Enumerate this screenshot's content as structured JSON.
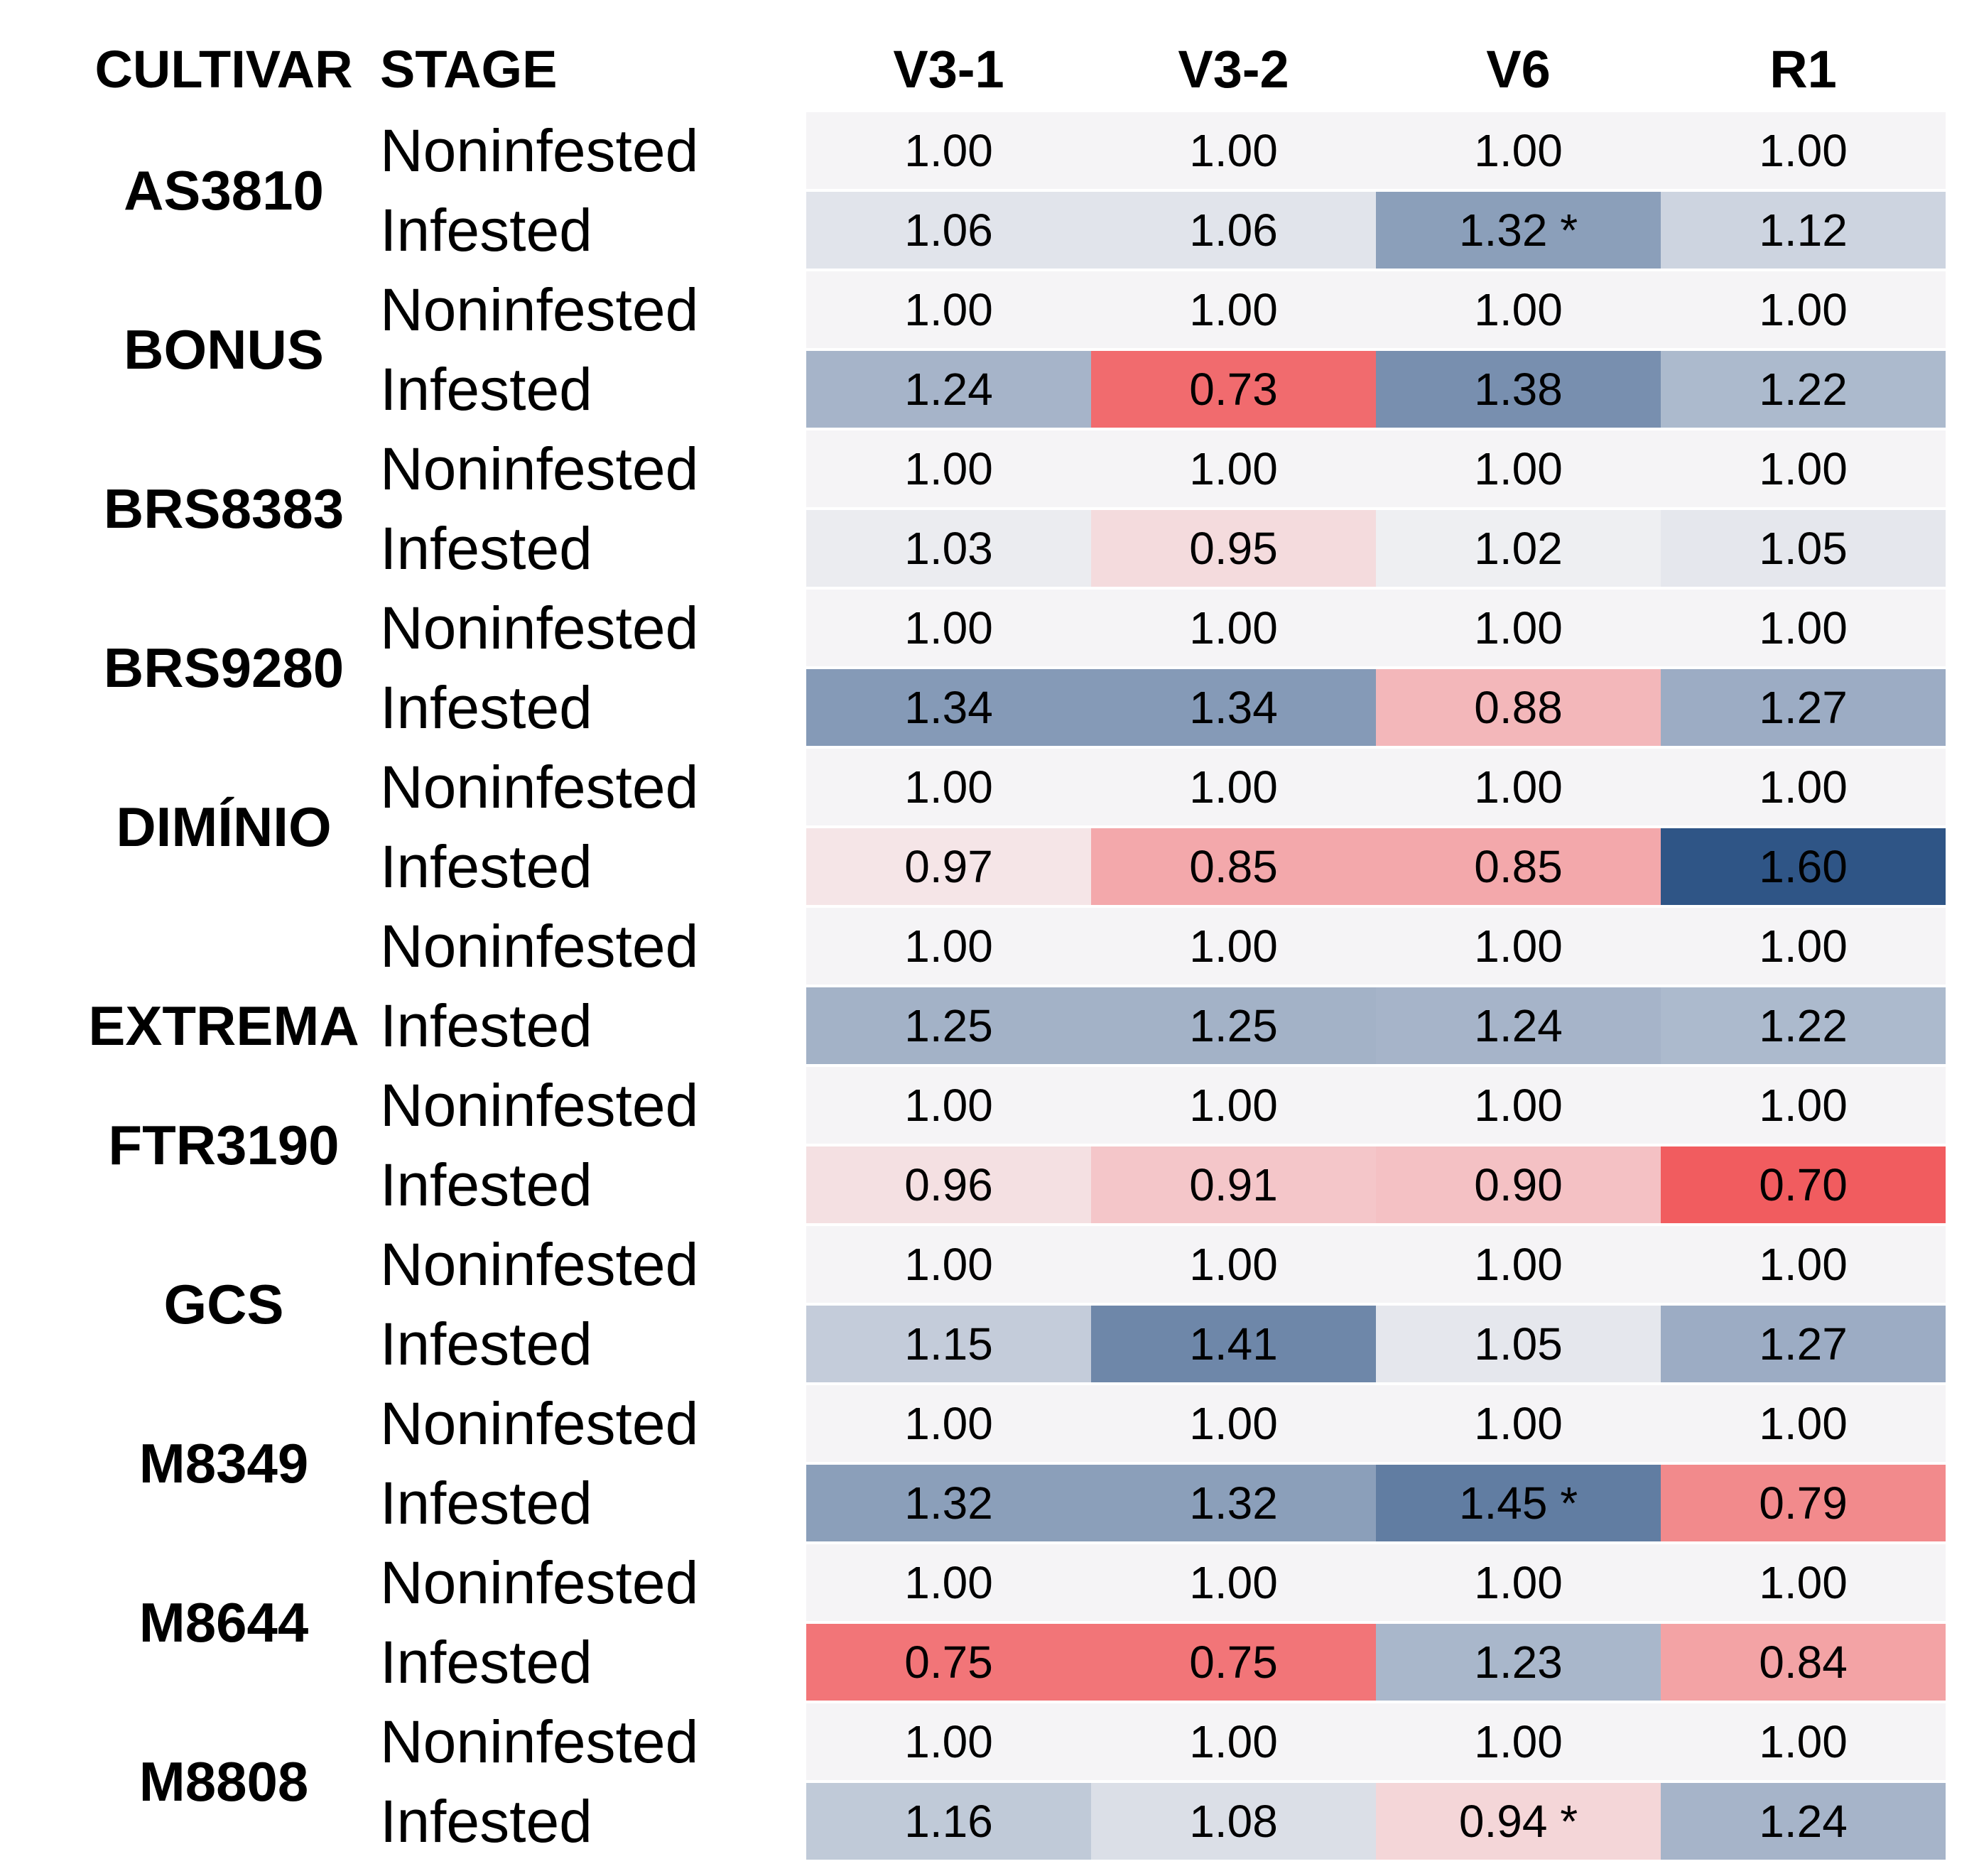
{
  "chart_data": {
    "type": "heatmap",
    "column_headers": [
      "CULTIVAR",
      "STAGE",
      "V3-1",
      "V3-2",
      "V6",
      "R1"
    ],
    "value_columns": [
      "V3-1",
      "V3-2",
      "V6",
      "R1"
    ],
    "significance_marker": "*",
    "color_scale": {
      "type": "diverging",
      "low_color": "#f15c5f",
      "mid_color": "#f5f4f6",
      "high_color": "#2f5586",
      "low_value": 0.7,
      "mid_value": 1.0,
      "high_value": 1.6
    },
    "groups": [
      {
        "cultivar": "AS3810",
        "rows": [
          {
            "stage": "Noninfested",
            "labels": [
              "1.00",
              "1.00",
              "1.00",
              "1.00"
            ],
            "values": [
              1.0,
              1.0,
              1.0,
              1.0
            ]
          },
          {
            "stage": "Infested",
            "labels": [
              "1.06",
              "1.06",
              "1.32 *",
              "1.12"
            ],
            "values": [
              1.06,
              1.06,
              1.32,
              1.12
            ]
          }
        ]
      },
      {
        "cultivar": "BONUS",
        "rows": [
          {
            "stage": "Noninfested",
            "labels": [
              "1.00",
              "1.00",
              "1.00",
              "1.00"
            ],
            "values": [
              1.0,
              1.0,
              1.0,
              1.0
            ]
          },
          {
            "stage": "Infested",
            "labels": [
              "1.24",
              "0.73",
              "1.38",
              "1.22"
            ],
            "values": [
              1.24,
              0.73,
              1.38,
              1.22
            ]
          }
        ]
      },
      {
        "cultivar": "BRS8383",
        "rows": [
          {
            "stage": "Noninfested",
            "labels": [
              "1.00",
              "1.00",
              "1.00",
              "1.00"
            ],
            "values": [
              1.0,
              1.0,
              1.0,
              1.0
            ]
          },
          {
            "stage": "Infested",
            "labels": [
              "1.03",
              "0.95",
              "1.02",
              "1.05"
            ],
            "values": [
              1.03,
              0.95,
              1.02,
              1.05
            ]
          }
        ]
      },
      {
        "cultivar": "BRS9280",
        "rows": [
          {
            "stage": "Noninfested",
            "labels": [
              "1.00",
              "1.00",
              "1.00",
              "1.00"
            ],
            "values": [
              1.0,
              1.0,
              1.0,
              1.0
            ]
          },
          {
            "stage": "Infested",
            "labels": [
              "1.34",
              "1.34",
              "0.88",
              "1.27"
            ],
            "values": [
              1.34,
              1.34,
              0.88,
              1.27
            ]
          }
        ]
      },
      {
        "cultivar": "DIMÍNIO",
        "rows": [
          {
            "stage": "Noninfested",
            "labels": [
              "1.00",
              "1.00",
              "1.00",
              "1.00"
            ],
            "values": [
              1.0,
              1.0,
              1.0,
              1.0
            ]
          },
          {
            "stage": "Infested",
            "labels": [
              "0.97",
              "0.85",
              "0.85",
              "1.60"
            ],
            "values": [
              0.97,
              0.85,
              0.85,
              1.6
            ]
          }
        ]
      },
      {
        "cultivar": "EXTREMA",
        "label_align": "infested_row",
        "rows": [
          {
            "stage": "Noninfested",
            "labels": [
              "1.00",
              "1.00",
              "1.00",
              "1.00"
            ],
            "values": [
              1.0,
              1.0,
              1.0,
              1.0
            ]
          },
          {
            "stage": "Infested",
            "labels": [
              "1.25",
              "1.25",
              "1.24",
              "1.22"
            ],
            "values": [
              1.25,
              1.25,
              1.24,
              1.22
            ]
          }
        ]
      },
      {
        "cultivar": "FTR3190",
        "rows": [
          {
            "stage": "Noninfested",
            "labels": [
              "1.00",
              "1.00",
              "1.00",
              "1.00"
            ],
            "values": [
              1.0,
              1.0,
              1.0,
              1.0
            ]
          },
          {
            "stage": "Infested",
            "labels": [
              "0.96",
              "0.91",
              "0.90",
              "0.70"
            ],
            "values": [
              0.96,
              0.91,
              0.9,
              0.7
            ]
          }
        ]
      },
      {
        "cultivar": "GCS",
        "rows": [
          {
            "stage": "Noninfested",
            "labels": [
              "1.00",
              "1.00",
              "1.00",
              "1.00"
            ],
            "values": [
              1.0,
              1.0,
              1.0,
              1.0
            ]
          },
          {
            "stage": "Infested",
            "labels": [
              "1.15",
              "1.41",
              "1.05",
              "1.27"
            ],
            "values": [
              1.15,
              1.41,
              1.05,
              1.27
            ]
          }
        ]
      },
      {
        "cultivar": "M8349",
        "rows": [
          {
            "stage": "Noninfested",
            "labels": [
              "1.00",
              "1.00",
              "1.00",
              "1.00"
            ],
            "values": [
              1.0,
              1.0,
              1.0,
              1.0
            ]
          },
          {
            "stage": "Infested",
            "labels": [
              "1.32",
              "1.32",
              "1.45 *",
              "0.79"
            ],
            "values": [
              1.32,
              1.32,
              1.45,
              0.79
            ]
          }
        ]
      },
      {
        "cultivar": "M8644",
        "rows": [
          {
            "stage": "Noninfested",
            "labels": [
              "1.00",
              "1.00",
              "1.00",
              "1.00"
            ],
            "values": [
              1.0,
              1.0,
              1.0,
              1.0
            ]
          },
          {
            "stage": "Infested",
            "labels": [
              "0.75",
              "0.75",
              "1.23",
              "0.84"
            ],
            "values": [
              0.75,
              0.75,
              1.23,
              0.84
            ]
          }
        ]
      },
      {
        "cultivar": "M8808",
        "rows": [
          {
            "stage": "Noninfested",
            "labels": [
              "1.00",
              "1.00",
              "1.00",
              "1.00"
            ],
            "values": [
              1.0,
              1.0,
              1.0,
              1.0
            ]
          },
          {
            "stage": "Infested",
            "labels": [
              "1.16",
              "1.08",
              "0.94 *",
              "1.24"
            ],
            "values": [
              1.16,
              1.08,
              0.94,
              1.24
            ]
          }
        ]
      }
    ]
  }
}
